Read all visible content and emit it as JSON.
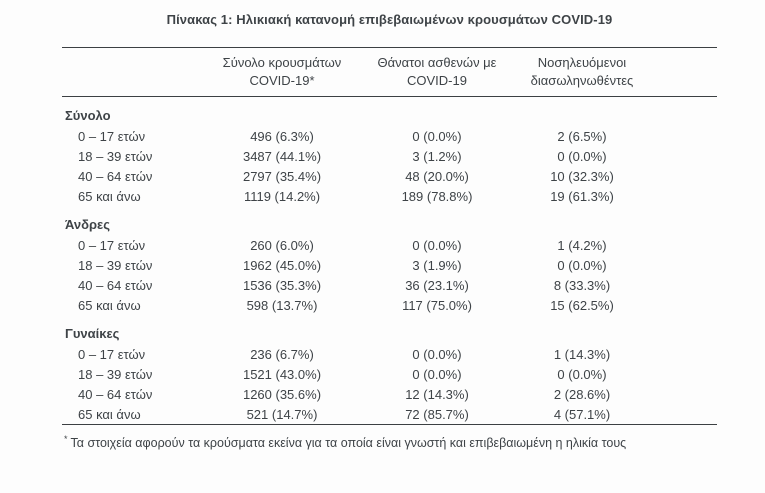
{
  "page": {
    "title": "Πίνακας 1: Ηλικιακή κατανομή επιβεβαιωμένων κρουσμάτων COVID-19"
  },
  "table": {
    "header": {
      "cases": {
        "line1": "Σύνολο κρουσμάτων",
        "line2": "COVID-19*"
      },
      "deaths": {
        "line1": "Θάνατοι ασθενών με",
        "line2": "COVID-19"
      },
      "intubated": {
        "line1": "Νοσηλευόμενοι",
        "line2": "διασωληνωθέντες"
      }
    },
    "sections": [
      {
        "label": "Σύνολο",
        "rows": [
          {
            "age": "0 – 17 ετών",
            "cases": "496 (6.3%)",
            "deaths": "0 (0.0%)",
            "intubated": "2 (6.5%)"
          },
          {
            "age": "18 – 39 ετών",
            "cases": "3487 (44.1%)",
            "deaths": "3 (1.2%)",
            "intubated": "0 (0.0%)"
          },
          {
            "age": "40 – 64 ετών",
            "cases": "2797 (35.4%)",
            "deaths": "48 (20.0%)",
            "intubated": "10 (32.3%)"
          },
          {
            "age": "65 και άνω",
            "cases": "1119 (14.2%)",
            "deaths": "189 (78.8%)",
            "intubated": "19 (61.3%)"
          }
        ]
      },
      {
        "label": "Άνδρες",
        "rows": [
          {
            "age": "0 – 17 ετών",
            "cases": "260 (6.0%)",
            "deaths": "0 (0.0%)",
            "intubated": "1 (4.2%)"
          },
          {
            "age": "18 – 39 ετών",
            "cases": "1962 (45.0%)",
            "deaths": "3 (1.9%)",
            "intubated": "0 (0.0%)"
          },
          {
            "age": "40 – 64 ετών",
            "cases": "1536 (35.3%)",
            "deaths": "36 (23.1%)",
            "intubated": "8 (33.3%)"
          },
          {
            "age": "65 και άνω",
            "cases": "598 (13.7%)",
            "deaths": "117 (75.0%)",
            "intubated": "15 (62.5%)"
          }
        ]
      },
      {
        "label": "Γυναίκες",
        "rows": [
          {
            "age": "0 – 17 ετών",
            "cases": "236 (6.7%)",
            "deaths": "0 (0.0%)",
            "intubated": "1 (14.3%)"
          },
          {
            "age": "18 – 39 ετών",
            "cases": "1521 (43.0%)",
            "deaths": "0 (0.0%)",
            "intubated": "0 (0.0%)"
          },
          {
            "age": "40 – 64 ετών",
            "cases": "1260 (35.6%)",
            "deaths": "12 (14.3%)",
            "intubated": "2 (28.6%)"
          },
          {
            "age": "65 και άνω",
            "cases": "521 (14.7%)",
            "deaths": "72 (85.7%)",
            "intubated": "4 (57.1%)"
          }
        ]
      }
    ]
  },
  "footnote": {
    "marker": "*",
    "text": "Τα στοιχεία αφορούν τα κρούσματα εκείνα για τα οποία είναι γνωστή και επιβεβαιωμένη η ηλικία τους"
  },
  "colors": {
    "text": "#3e4347",
    "rule": "#3c4043",
    "background": "#fdfdfd"
  }
}
